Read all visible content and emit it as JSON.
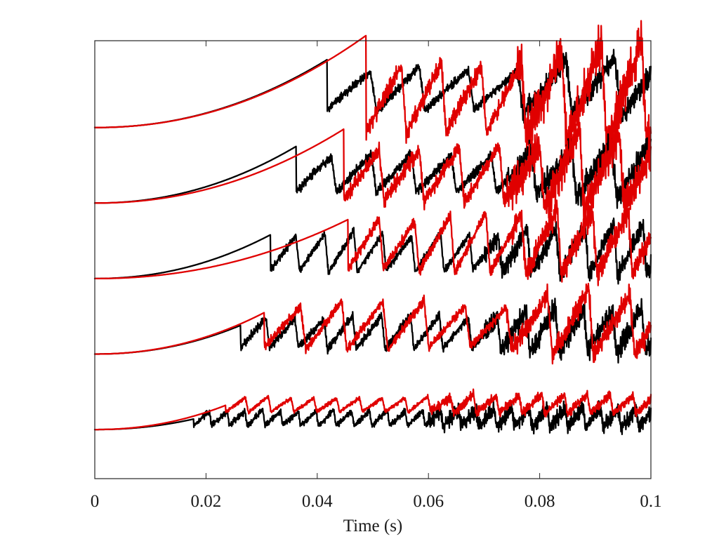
{
  "chart_data": {
    "type": "line",
    "title": "",
    "xlabel": "Time (s)",
    "ylabel": "",
    "xlim": [
      0,
      0.1
    ],
    "xticks": [
      "0",
      "0.02",
      "0.04",
      "0.06",
      "0.08",
      "0.1"
    ],
    "yticks_shown": false,
    "grid": false,
    "legend": "none",
    "colors": {
      "black": "#000000",
      "red": "#e00000"
    },
    "offset_units": "baseline of each stacked trace, top panel = 4, bottom panel = 0; amplitude in same units",
    "panels": [
      {
        "baseline": 4,
        "black": {
          "rise_amp": 0.9,
          "drop_time": 0.0418,
          "drop_level": 0.42,
          "saw_period": 0.0088,
          "saw_amp": 0.55,
          "late_time": 0.076,
          "late_amp": 0.8,
          "chatter": 0.07
        },
        "red": {
          "rise_amp": 1.22,
          "drop_time": 0.0488,
          "drop_level": 0.25,
          "saw_period": 0.0072,
          "saw_amp": 0.95,
          "late_time": 0.076,
          "late_amp": 1.35,
          "chatter": 0.14
        }
      },
      {
        "baseline": 3,
        "black": {
          "rise_amp": 0.75,
          "drop_time": 0.0362,
          "drop_level": 0.32,
          "saw_period": 0.0072,
          "saw_amp": 0.5,
          "late_time": 0.074,
          "late_amp": 0.75,
          "chatter": 0.08
        },
        "red": {
          "rise_amp": 0.98,
          "drop_time": 0.0448,
          "drop_level": 0.27,
          "saw_period": 0.0072,
          "saw_amp": 0.72,
          "late_time": 0.074,
          "late_amp": 1.1,
          "chatter": 0.12
        }
      },
      {
        "baseline": 2,
        "black": {
          "rise_amp": 0.58,
          "drop_time": 0.0316,
          "drop_level": 0.27,
          "saw_period": 0.0052,
          "saw_amp": 0.5,
          "late_time": 0.07,
          "late_amp": 0.65,
          "chatter": 0.06
        },
        "red": {
          "rise_amp": 0.78,
          "drop_time": 0.0455,
          "drop_level": 0.35,
          "saw_period": 0.0064,
          "saw_amp": 0.72,
          "late_time": 0.075,
          "late_amp": 0.85,
          "chatter": 0.08
        }
      },
      {
        "baseline": 1,
        "black": {
          "rise_amp": 0.38,
          "drop_time": 0.0262,
          "drop_level": 0.22,
          "saw_period": 0.0052,
          "saw_amp": 0.42,
          "late_time": 0.07,
          "late_amp": 0.6,
          "chatter": 0.07
        },
        "red": {
          "rise_amp": 0.55,
          "drop_time": 0.0305,
          "drop_level": 0.28,
          "saw_period": 0.0074,
          "saw_amp": 0.58,
          "late_time": 0.074,
          "late_amp": 0.85,
          "chatter": 0.07
        }
      },
      {
        "baseline": 0,
        "black": {
          "rise_amp": 0.14,
          "drop_time": 0.0178,
          "drop_level": 0.12,
          "saw_period": 0.0032,
          "saw_amp": 0.2,
          "late_time": 0.06,
          "late_amp": 0.25,
          "chatter": 0.05
        },
        "red": {
          "rise_amp": 0.32,
          "drop_time": 0.0235,
          "drop_level": 0.3,
          "saw_period": 0.0041,
          "saw_amp": 0.2,
          "late_time": 0.06,
          "late_amp": 0.25,
          "chatter": 0.03
        }
      }
    ],
    "ylim": [
      -0.65,
      5.15
    ]
  }
}
